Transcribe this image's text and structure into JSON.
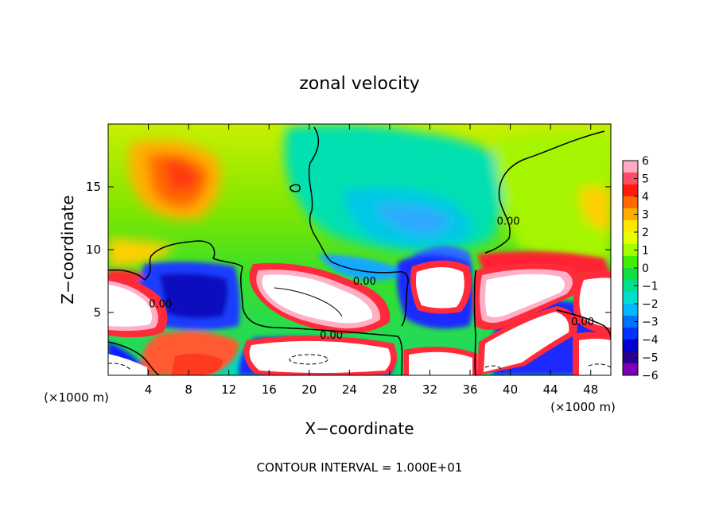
{
  "chart_data": {
    "type": "heatmap",
    "title": "zonal velocity",
    "xlabel": "X−coordinate",
    "ylabel": "Z−coordinate",
    "x_unit_label": "(×1000 m)",
    "z_unit_label": "(×1000 m)",
    "footer": "CONTOUR INTERVAL = 1.000E+01",
    "xlim": [
      0,
      50
    ],
    "ylim": [
      0,
      20
    ],
    "x_ticks": [
      4,
      8,
      12,
      16,
      20,
      24,
      28,
      32,
      36,
      40,
      44,
      48
    ],
    "y_ticks": [
      5,
      10,
      15
    ],
    "colorbar": {
      "min": -6,
      "max": 6,
      "tick_labels": [
        "6",
        "5",
        "4",
        "3",
        "2",
        "1",
        "0",
        "−1",
        "−2",
        "−3",
        "−4",
        "−5",
        "−6"
      ],
      "colors": [
        "#ffa9c4",
        "#ff4a63",
        "#ff1a0d",
        "#ff6a00",
        "#ffab00",
        "#ffe800",
        "#e8ff00",
        "#a2ff00",
        "#44ee00",
        "#11dd44",
        "#00e08a",
        "#00dfcf",
        "#00baff",
        "#0070ff",
        "#0033ff",
        "#0000d0",
        "#2a0090",
        "#7a00b8"
      ]
    },
    "contour_labels": [
      {
        "text": "0.00",
        "x": 5.2,
        "z": 5.4
      },
      {
        "text": "0.00",
        "x": 25.5,
        "z": 7.2
      },
      {
        "text": "0.00",
        "x": 22.2,
        "z": 2.9
      },
      {
        "text": "0.00",
        "x": 47.2,
        "z": 4.0
      },
      {
        "text": "0.00",
        "x": 39.8,
        "z": 12.0
      }
    ]
  }
}
